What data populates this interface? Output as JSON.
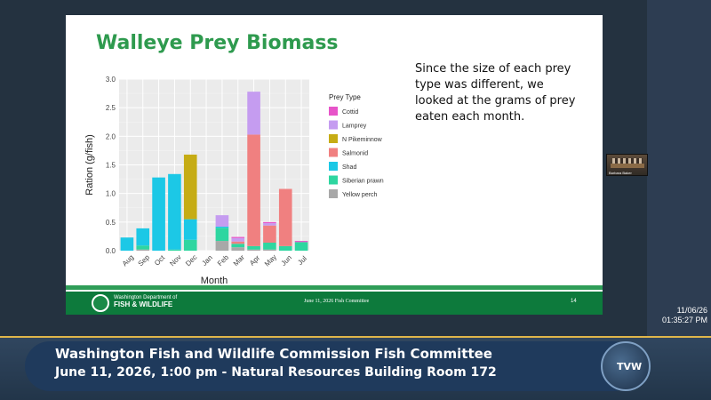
{
  "slide": {
    "title": "Walleye Prey Biomass",
    "text": "Since the size of each prey type was different, we looked at the grams of prey eaten each month.",
    "footer": {
      "agency_line1": "Washington Department of",
      "agency_line2": "FISH & WILDLIFE",
      "center": "June 11, 2026 Fish Committee",
      "page": "14"
    }
  },
  "chart_data": {
    "type": "bar",
    "stacked": true,
    "title": "",
    "xlabel": "Month",
    "ylabel": "Ration (g/fish)",
    "ylim": [
      0,
      3.0
    ],
    "yticks": [
      "0.0",
      "0.5",
      "1.0",
      "1.5",
      "2.0",
      "2.5",
      "3.0"
    ],
    "categories": [
      "Aug",
      "Sep",
      "Oct",
      "Nov",
      "Dec",
      "Jan",
      "Feb",
      "Mar",
      "Apr",
      "May",
      "Jun",
      "Jul"
    ],
    "legend_title": "Prey Type",
    "legend_position": "right",
    "series": [
      {
        "name": "Cottid",
        "color": "#e754c9",
        "values": [
          0,
          0,
          0,
          0,
          0,
          0,
          0,
          0.02,
          0,
          0.02,
          0,
          0.02
        ]
      },
      {
        "name": "Lamprey",
        "color": "#c59cf0",
        "values": [
          0,
          0,
          0,
          0,
          0,
          0,
          0.2,
          0.06,
          0.75,
          0.04,
          0,
          0
        ]
      },
      {
        "name": "N Pikeminnow",
        "color": "#c6ac14",
        "values": [
          0,
          0,
          0,
          0,
          1.13,
          0,
          0,
          0,
          0,
          0,
          0,
          0
        ]
      },
      {
        "name": "Salmonid",
        "color": "#f08080",
        "values": [
          0,
          0,
          0,
          0,
          0,
          0,
          0,
          0.04,
          1.95,
          0.3,
          1.0,
          0
        ]
      },
      {
        "name": "Shad",
        "color": "#1cc8e6",
        "values": [
          0.23,
          0.3,
          1.28,
          1.32,
          0.36,
          0,
          0.02,
          0,
          0,
          0,
          0,
          0
        ]
      },
      {
        "name": "Siberian prawn",
        "color": "#2ed6a0",
        "values": [
          0,
          0.07,
          0,
          0.02,
          0.19,
          0,
          0.23,
          0.06,
          0.06,
          0.12,
          0.08,
          0.15
        ]
      },
      {
        "name": "Yellow perch",
        "color": "#a8a8a8",
        "values": [
          0,
          0.02,
          0,
          0,
          0,
          0,
          0.17,
          0.06,
          0.02,
          0.02,
          0,
          0
        ]
      }
    ]
  },
  "timestamp": {
    "date": "11/06/26",
    "time": "01:35:27 PM"
  },
  "banner": {
    "title": "Washington Fish and Wildlife Commission Fish Committee",
    "subtitle": "June 11, 2026, 1:00 pm - Natural Resources Building Room 172",
    "logo": "TVW"
  },
  "webcam": {
    "name_tag": "Barbara Baker"
  }
}
